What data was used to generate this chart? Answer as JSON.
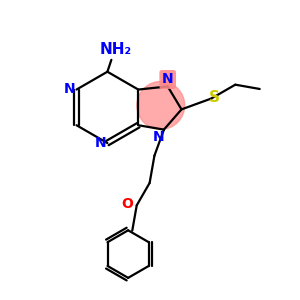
{
  "bg_color": "#ffffff",
  "atom_colors": {
    "N": "#0000ff",
    "S": "#cccc00",
    "O": "#ff0000",
    "C": "#000000"
  },
  "highlight_color": "#ff8888",
  "highlight_alpha": 0.7,
  "lw": 1.6
}
